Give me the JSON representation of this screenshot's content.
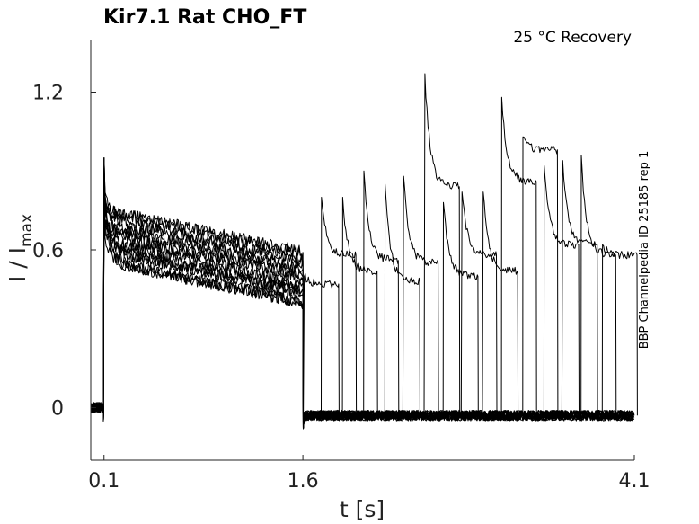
{
  "chart_data": {
    "type": "line",
    "title": "Kir7.1  Rat  CHO_FT",
    "annotation": "25 °C  Recovery",
    "side_note": "BBP Channelpedia ID 25185 rep 1",
    "xlabel": "t [s]",
    "ylabel": "I / I",
    "ylabel_sub": "max",
    "xlim": [
      0.0,
      4.1
    ],
    "ylim": [
      -0.2,
      1.4
    ],
    "x_ticks": [
      0.1,
      1.6,
      4.1
    ],
    "x_tick_labels": [
      "0.1",
      "1.6",
      "4.1"
    ],
    "y_ticks": [
      0,
      0.6,
      1.2
    ],
    "y_tick_labels": [
      "0",
      "0.6",
      "1.2"
    ],
    "grid": false,
    "legend": "none",
    "protocol": {
      "baseline": 0.0,
      "prepulse_start": 0.1,
      "prepulse_end": 1.6,
      "prepulse_peak": 0.95,
      "prepulse_end_levels": [
        0.4,
        0.44,
        0.47,
        0.5,
        0.53,
        0.56,
        0.59
      ],
      "recovery_baseline": -0.03,
      "recovery_end": 4.1
    },
    "series": [
      {
        "test_start": 1.6,
        "peak": 0.5,
        "steady": 0.47
      },
      {
        "test_start": 1.74,
        "peak": 0.8,
        "steady": 0.58
      },
      {
        "test_start": 1.9,
        "peak": 0.8,
        "steady": 0.52
      },
      {
        "test_start": 2.06,
        "peak": 0.9,
        "steady": 0.56
      },
      {
        "test_start": 2.22,
        "peak": 0.85,
        "steady": 0.48
      },
      {
        "test_start": 2.36,
        "peak": 0.88,
        "steady": 0.55
      },
      {
        "test_start": 2.52,
        "peak": 1.27,
        "steady": 0.84
      },
      {
        "test_start": 2.66,
        "peak": 0.78,
        "steady": 0.5
      },
      {
        "test_start": 2.8,
        "peak": 0.82,
        "steady": 0.58
      },
      {
        "test_start": 2.96,
        "peak": 0.82,
        "steady": 0.52
      },
      {
        "test_start": 3.1,
        "peak": 1.18,
        "steady": 0.86
      },
      {
        "test_start": 3.26,
        "peak": 1.03,
        "steady": 0.98
      },
      {
        "test_start": 3.42,
        "peak": 0.92,
        "steady": 0.62
      },
      {
        "test_start": 3.56,
        "peak": 0.94,
        "steady": 0.62
      },
      {
        "test_start": 3.7,
        "peak": 0.96,
        "steady": 0.58
      },
      {
        "test_start": 3.86,
        "peak": 0.62,
        "steady": 0.58
      }
    ]
  }
}
